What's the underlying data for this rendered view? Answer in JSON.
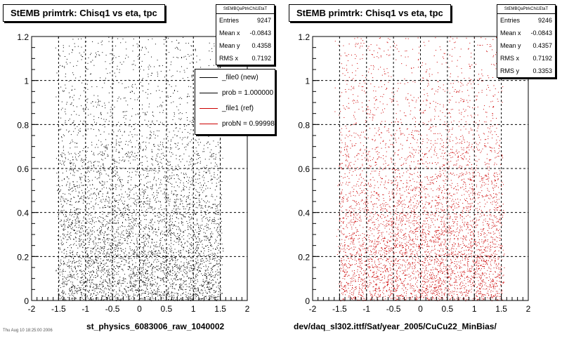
{
  "chart_data": [
    {
      "type": "scatter",
      "title": "StEMB primtrk: Chisq1 vs eta, tpc",
      "xlabel": "st_physics_6083006_raw_1040002",
      "xlim": [
        -2,
        2
      ],
      "ylim": [
        0,
        1.2
      ],
      "x_ticks": [
        "-2",
        "-1.5",
        "-1",
        "-0.5",
        "0",
        "0.5",
        "1",
        "1.5",
        "2"
      ],
      "y_ticks": [
        "0",
        "0.2",
        "0.4",
        "0.6",
        "0.8",
        "1",
        "1.2"
      ],
      "grid": true,
      "marker_color": "#000000",
      "stats": {
        "name": "StEMBQaPtrkChi1EtaT",
        "rows": [
          {
            "label": "Entries",
            "value": "9247"
          },
          {
            "label": "Mean x",
            "value": "-0.0843"
          },
          {
            "label": "Mean y",
            "value": "0.4358"
          },
          {
            "label": "RMS x",
            "value": "0.7192"
          }
        ]
      },
      "legend": {
        "placement": "top-right",
        "entries": [
          {
            "label": "_file0 (new)",
            "color": "#000000"
          },
          {
            "label": "prob = 1.000000",
            "color": "#000000"
          },
          {
            "label": "_file1 (ref)",
            "color": "#cc0000"
          },
          {
            "label": "probN = 0.999989",
            "color": "#cc0000"
          }
        ]
      },
      "footer_note": "Thu Aug 10 18:25:00 2006"
    },
    {
      "type": "scatter",
      "title": "StEMB primtrk: Chisq1 vs eta, tpc",
      "xlabel": "dev/daq_sl302.ittf/Sat/year_2005/CuCu22_MinBias/",
      "xlim": [
        -2,
        2
      ],
      "ylim": [
        0,
        1.2
      ],
      "x_ticks": [
        "-2",
        "-1.5",
        "-1",
        "-0.5",
        "0",
        "0.5",
        "1",
        "1.5",
        "2"
      ],
      "y_ticks": [
        "0",
        "0.2",
        "0.4",
        "0.6",
        "0.8",
        "1",
        "1.2"
      ],
      "grid": true,
      "marker_color": "#cc0000",
      "stats": {
        "name": "StEMBQaPtrkChi1EtaT",
        "rows": [
          {
            "label": "Entries",
            "value": "9246"
          },
          {
            "label": "Mean x",
            "value": "-0.0843"
          },
          {
            "label": "Mean y",
            "value": "0.4357"
          },
          {
            "label": "RMS x",
            "value": "0.7192"
          },
          {
            "label": "RMS y",
            "value": "0.3353"
          }
        ]
      }
    }
  ]
}
